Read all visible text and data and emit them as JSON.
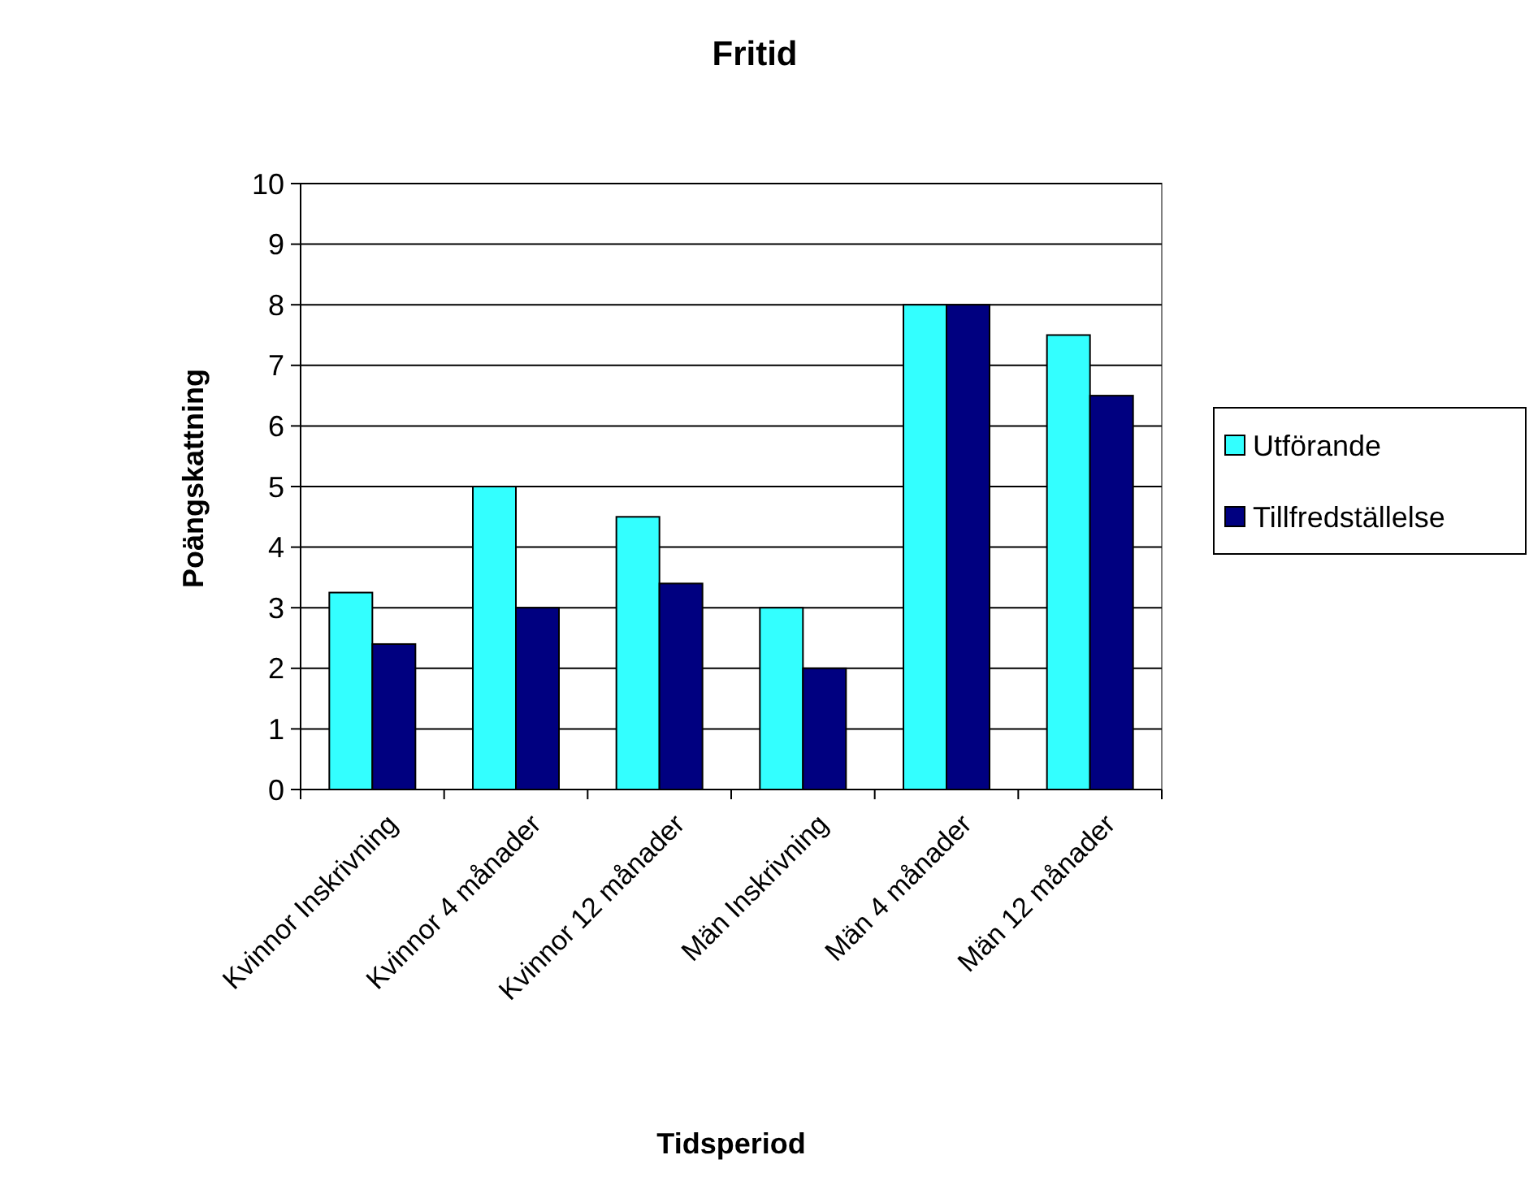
{
  "chart_data": {
    "type": "bar",
    "title": "Fritid",
    "xlabel": "Tidsperiod",
    "ylabel": "Poängskattning",
    "categories": [
      "Kvinnor Inskrivning",
      "Kvinnor 4 månader",
      "Kvinnor 12 månader",
      "Män Inskrivning",
      "Män 4 månader",
      "Män 12 månader"
    ],
    "series": [
      {
        "name": "Utförande",
        "color": "#33ffff",
        "values": [
          3.25,
          5,
          4.5,
          3,
          8,
          7.5
        ]
      },
      {
        "name": "Tillfredställelse",
        "color": "#000080",
        "values": [
          2.4,
          3,
          3.4,
          2,
          8,
          6.5
        ]
      }
    ],
    "ylim": [
      0,
      10
    ],
    "yticks": [
      0,
      1,
      2,
      3,
      4,
      5,
      6,
      7,
      8,
      9,
      10
    ],
    "grid": "y",
    "legend": "right"
  }
}
